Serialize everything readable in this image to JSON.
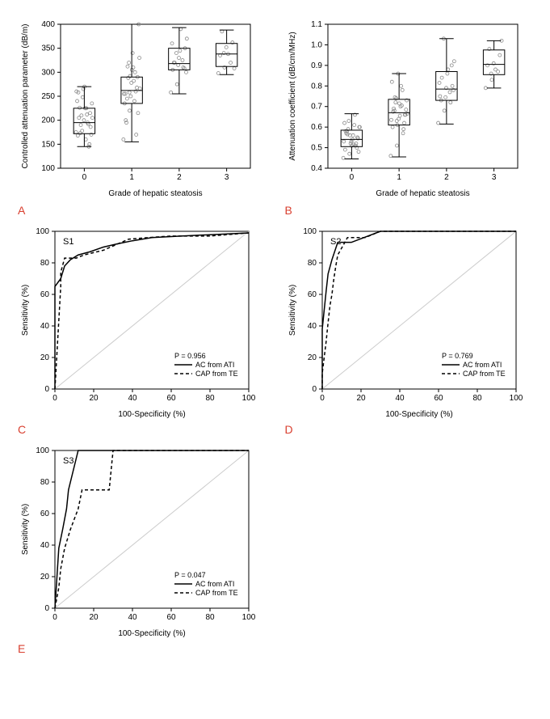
{
  "panels": {
    "A": {
      "type": "boxplot",
      "xlabel": "Grade of hepatic steatosis",
      "ylabel": "Controlled attenuation parameter (dB/m)",
      "ylim": [
        100,
        400
      ],
      "ytick_step": 50,
      "categories": [
        "0",
        "1",
        "2",
        "3"
      ],
      "boxes": [
        {
          "q1": 172,
          "median": 195,
          "q3": 225,
          "whisker_lo": 145,
          "whisker_hi": 270
        },
        {
          "q1": 235,
          "median": 262,
          "q3": 290,
          "whisker_lo": 155,
          "whisker_hi": 400
        },
        {
          "q1": 305,
          "median": 318,
          "q3": 350,
          "whisker_lo": 255,
          "whisker_hi": 393
        },
        {
          "q1": 312,
          "median": 338,
          "q3": 360,
          "whisker_lo": 295,
          "whisker_hi": 388
        }
      ],
      "points": [
        [
          175,
          178,
          192,
          168,
          200,
          215,
          226,
          160,
          235,
          210,
          195,
          240,
          265,
          150,
          205,
          225,
          170,
          190,
          212,
          260,
          248,
          145,
          258,
          270,
          186,
          173,
          225,
          205
        ],
        [
          160,
          220,
          260,
          255,
          278,
          290,
          245,
          310,
          330,
          320,
          300,
          235,
          250,
          268,
          195,
          340,
          400,
          288,
          240,
          255,
          292,
          170,
          200,
          305,
          215,
          312,
          282,
          266,
          258
        ],
        [
          258,
          275,
          310,
          305,
          330,
          350,
          320,
          390,
          370,
          340,
          325,
          360,
          315,
          308,
          320,
          345,
          300
        ],
        [
          298,
          310,
          320,
          335,
          352,
          362,
          385,
          338,
          308,
          340
        ]
      ],
      "point_color": "#888888",
      "box_color": "#000000",
      "background_color": "#ffffff",
      "label_fontsize": 10
    },
    "B": {
      "type": "boxplot",
      "xlabel": "Grade of hepatic steatosis",
      "ylabel": "Attenuation coefficient (dB/cm/MHz)",
      "ylim": [
        0.4,
        1.1
      ],
      "ytick_step": 0.1,
      "categories": [
        "0",
        "1",
        "2",
        "3"
      ],
      "boxes": [
        {
          "q1": 0.505,
          "median": 0.54,
          "q3": 0.585,
          "whisker_lo": 0.445,
          "whisker_hi": 0.665
        },
        {
          "q1": 0.61,
          "median": 0.67,
          "q3": 0.735,
          "whisker_lo": 0.455,
          "whisker_hi": 0.86
        },
        {
          "q1": 0.73,
          "median": 0.785,
          "q3": 0.87,
          "whisker_lo": 0.615,
          "whisker_hi": 1.03
        },
        {
          "q1": 0.855,
          "median": 0.905,
          "q3": 0.975,
          "whisker_lo": 0.79,
          "whisker_hi": 1.02
        }
      ],
      "points": [
        [
          0.45,
          0.47,
          0.51,
          0.49,
          0.53,
          0.55,
          0.58,
          0.56,
          0.6,
          0.63,
          0.66,
          0.62,
          0.52,
          0.5,
          0.57,
          0.54,
          0.48,
          0.59,
          0.61,
          0.53,
          0.56,
          0.52,
          0.58,
          0.51,
          0.545,
          0.565,
          0.515,
          0.6
        ],
        [
          0.46,
          0.51,
          0.57,
          0.6,
          0.64,
          0.66,
          0.68,
          0.7,
          0.73,
          0.74,
          0.78,
          0.82,
          0.86,
          0.62,
          0.69,
          0.655,
          0.685,
          0.72,
          0.705,
          0.635,
          0.61,
          0.59,
          0.675,
          0.715,
          0.66,
          0.745,
          0.8,
          0.665,
          0.63
        ],
        [
          0.62,
          0.68,
          0.72,
          0.75,
          0.79,
          0.8,
          0.84,
          0.88,
          0.92,
          1.03,
          0.77,
          0.815,
          0.745,
          0.9,
          0.73,
          0.86,
          0.78
        ],
        [
          0.79,
          0.83,
          0.87,
          0.9,
          0.91,
          0.95,
          0.98,
          0.88,
          1.02,
          0.86
        ]
      ],
      "point_color": "#888888",
      "box_color": "#000000",
      "background_color": "#ffffff",
      "label_fontsize": 10
    },
    "C": {
      "type": "roc",
      "xlabel": "100-Specificity (%)",
      "ylabel": "Sensitivity (%)",
      "xlim": [
        0,
        100
      ],
      "ylim": [
        0,
        100
      ],
      "tick_step": 20,
      "inset_label": "S1",
      "p_text": "P = 0.956",
      "legend": [
        {
          "style": "solid",
          "label": "AC from ATI"
        },
        {
          "style": "dashed",
          "label": "CAP from TE"
        }
      ],
      "curves": {
        "solid": [
          [
            0,
            0
          ],
          [
            0,
            65
          ],
          [
            3,
            70
          ],
          [
            5,
            78
          ],
          [
            8,
            82
          ],
          [
            12,
            85
          ],
          [
            18,
            87
          ],
          [
            25,
            90
          ],
          [
            32,
            92
          ],
          [
            40,
            94
          ],
          [
            50,
            96
          ],
          [
            65,
            97
          ],
          [
            100,
            99
          ]
        ],
        "dashed": [
          [
            0,
            0
          ],
          [
            3,
            65
          ],
          [
            3,
            74
          ],
          [
            5,
            83
          ],
          [
            11,
            83
          ],
          [
            15,
            85
          ],
          [
            25,
            88
          ],
          [
            38,
            95
          ],
          [
            48,
            96
          ],
          [
            60,
            97
          ],
          [
            80,
            97
          ],
          [
            100,
            99
          ]
        ]
      },
      "line_color": "#000000",
      "diag_color": "#cccccc"
    },
    "D": {
      "type": "roc",
      "xlabel": "100-Specificity (%)",
      "ylabel": "Sensitivity (%)",
      "xlim": [
        0,
        100
      ],
      "ylim": [
        0,
        100
      ],
      "tick_step": 20,
      "inset_label": "S2",
      "p_text": "P = 0.769",
      "legend": [
        {
          "style": "solid",
          "label": "AC from ATI"
        },
        {
          "style": "dashed",
          "label": "CAP from TE"
        }
      ],
      "curves": {
        "solid": [
          [
            0,
            0
          ],
          [
            0,
            38
          ],
          [
            2,
            62
          ],
          [
            3,
            73
          ],
          [
            5,
            82
          ],
          [
            8,
            93
          ],
          [
            15,
            93
          ],
          [
            30,
            100
          ],
          [
            100,
            100
          ]
        ],
        "dashed": [
          [
            0,
            0
          ],
          [
            0,
            10
          ],
          [
            2,
            30
          ],
          [
            3,
            42
          ],
          [
            4,
            53
          ],
          [
            5,
            60
          ],
          [
            6,
            70
          ],
          [
            7,
            78
          ],
          [
            8,
            85
          ],
          [
            13,
            96
          ],
          [
            22,
            96
          ],
          [
            30,
            100
          ],
          [
            100,
            100
          ]
        ]
      },
      "line_color": "#000000",
      "diag_color": "#cccccc"
    },
    "E": {
      "type": "roc",
      "xlabel": "100-Specificity (%)",
      "ylabel": "Sensitivity (%)",
      "xlim": [
        0,
        100
      ],
      "ylim": [
        0,
        100
      ],
      "tick_step": 20,
      "inset_label": "S3",
      "p_text": "P = 0.047",
      "legend": [
        {
          "style": "solid",
          "label": "AC from ATI"
        },
        {
          "style": "dashed",
          "label": "CAP from TE"
        }
      ],
      "curves": {
        "solid": [
          [
            0,
            0
          ],
          [
            2,
            38
          ],
          [
            4,
            50
          ],
          [
            6,
            63
          ],
          [
            7,
            75
          ],
          [
            12,
            100
          ],
          [
            100,
            100
          ]
        ],
        "dashed": [
          [
            0,
            0
          ],
          [
            2,
            13
          ],
          [
            3,
            25
          ],
          [
            5,
            38
          ],
          [
            8,
            50
          ],
          [
            12,
            63
          ],
          [
            14,
            75
          ],
          [
            28,
            75
          ],
          [
            30,
            100
          ],
          [
            100,
            100
          ]
        ]
      },
      "line_color": "#000000",
      "diag_color": "#cccccc"
    }
  },
  "panel_label_color": "#d94030",
  "font_family": "Arial"
}
